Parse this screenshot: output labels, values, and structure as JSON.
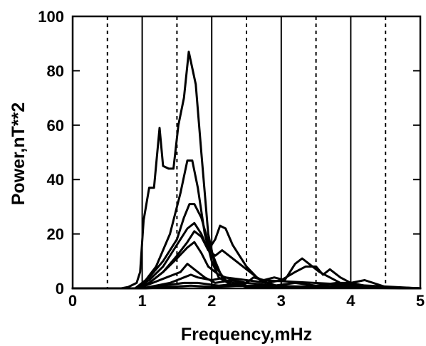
{
  "chart_data": {
    "type": "line",
    "title": "",
    "xlabel": "Frequency,mHz",
    "ylabel": "Power,nT**2",
    "xlim": [
      0,
      5
    ],
    "ylim": [
      0,
      100
    ],
    "x_ticks": [
      0,
      1,
      2,
      3,
      4,
      5
    ],
    "y_ticks": [
      0,
      20,
      40,
      60,
      80,
      100
    ],
    "grid_solid_x": [
      1,
      2,
      3,
      4
    ],
    "grid_dashed_x": [
      0.5,
      1.5,
      2.5,
      3.5,
      4.5
    ],
    "grid": true,
    "legend": "none",
    "series": [
      {
        "x": [
          0.0,
          0.7,
          0.8,
          0.92,
          0.97,
          1.02,
          1.1,
          1.17,
          1.25,
          1.3,
          1.38,
          1.45,
          1.52,
          1.6,
          1.67,
          1.77,
          1.85,
          1.95,
          2.05,
          2.2,
          2.5,
          5.0
        ],
        "y": [
          0,
          0,
          0.5,
          2,
          6,
          25,
          37,
          37,
          59,
          45,
          44,
          44,
          60,
          70,
          87,
          75,
          50,
          20,
          8,
          3,
          0.5,
          0
        ]
      },
      {
        "x": [
          0.0,
          0.9,
          1.05,
          1.2,
          1.4,
          1.55,
          1.65,
          1.72,
          1.8,
          1.9,
          2.0,
          2.1,
          2.3,
          5.0
        ],
        "y": [
          0,
          0,
          3,
          8,
          20,
          35,
          47,
          47,
          37,
          20,
          10,
          4,
          1,
          0
        ]
      },
      {
        "x": [
          0.0,
          0.9,
          1.1,
          1.3,
          1.5,
          1.6,
          1.68,
          1.75,
          1.85,
          1.95,
          2.05,
          2.15,
          2.3,
          5.0
        ],
        "y": [
          0,
          0,
          4,
          10,
          18,
          26,
          31,
          31,
          26,
          17,
          10,
          4,
          1,
          0
        ]
      },
      {
        "x": [
          0.0,
          0.9,
          1.1,
          1.3,
          1.45,
          1.55,
          1.65,
          1.75,
          1.85,
          1.95,
          2.05,
          2.12,
          2.2,
          2.3,
          2.4,
          2.5,
          2.65,
          2.8,
          3.0,
          5.0
        ],
        "y": [
          0,
          0,
          3,
          8,
          14,
          18,
          22,
          24,
          20,
          14,
          18,
          23,
          22,
          16,
          12,
          8,
          4,
          2,
          0.5,
          0
        ]
      },
      {
        "x": [
          0.0,
          0.9,
          1.1,
          1.3,
          1.5,
          1.65,
          1.75,
          1.85,
          1.95,
          2.05,
          2.15,
          2.25,
          2.35,
          2.5,
          2.7,
          5.0
        ],
        "y": [
          0,
          0,
          2,
          6,
          12,
          17,
          21,
          19,
          14,
          12,
          14,
          12,
          10,
          7,
          3,
          0
        ]
      },
      {
        "x": [
          0.0,
          0.9,
          1.1,
          1.3,
          1.5,
          1.65,
          1.75,
          1.85,
          1.95,
          2.1,
          2.3,
          2.5,
          5.0
        ],
        "y": [
          0,
          0,
          2,
          6,
          11,
          15,
          17,
          13,
          8,
          5,
          3,
          1,
          0
        ]
      },
      {
        "x": [
          0.0,
          0.95,
          1.15,
          1.35,
          1.55,
          1.65,
          1.75,
          1.9,
          2.05,
          2.3,
          2.5,
          2.6,
          2.75,
          2.9,
          3.05,
          3.2,
          3.3,
          3.4,
          3.55,
          3.7,
          3.85,
          4.0,
          4.2,
          4.4,
          5.0
        ],
        "y": [
          0,
          0,
          2,
          4,
          6,
          9,
          7,
          4,
          2,
          3,
          2,
          4,
          3,
          4,
          3,
          9,
          11,
          9,
          6,
          4,
          2,
          2,
          1,
          0.5,
          0
        ]
      },
      {
        "x": [
          0.0,
          1.0,
          1.2,
          1.4,
          1.6,
          1.7,
          1.8,
          2.0,
          2.2,
          2.5,
          2.8,
          3.0,
          3.2,
          3.35,
          3.5,
          3.6,
          3.7,
          3.85,
          4.0,
          4.2,
          4.5,
          5.0
        ],
        "y": [
          0,
          0,
          1,
          2,
          4,
          5,
          4,
          3,
          4,
          3,
          2,
          3,
          6,
          8,
          8,
          5,
          7,
          4,
          2,
          3,
          0.5,
          0
        ]
      },
      {
        "x": [
          0.0,
          1.0,
          1.3,
          1.6,
          1.8,
          2.1,
          2.5,
          2.9,
          3.2,
          3.5,
          3.8,
          4.1,
          4.5,
          5.0
        ],
        "y": [
          0,
          0,
          1,
          2,
          2,
          1,
          2,
          1,
          2,
          1,
          2,
          1,
          0.5,
          0
        ]
      },
      {
        "x": [
          0.0,
          1.05,
          1.4,
          1.7,
          2.0,
          2.4,
          2.8,
          3.3,
          3.8,
          4.3,
          5.0
        ],
        "y": [
          0,
          0,
          0.5,
          1,
          0.5,
          1,
          0.5,
          0.5,
          1,
          0.3,
          0
        ]
      }
    ]
  }
}
